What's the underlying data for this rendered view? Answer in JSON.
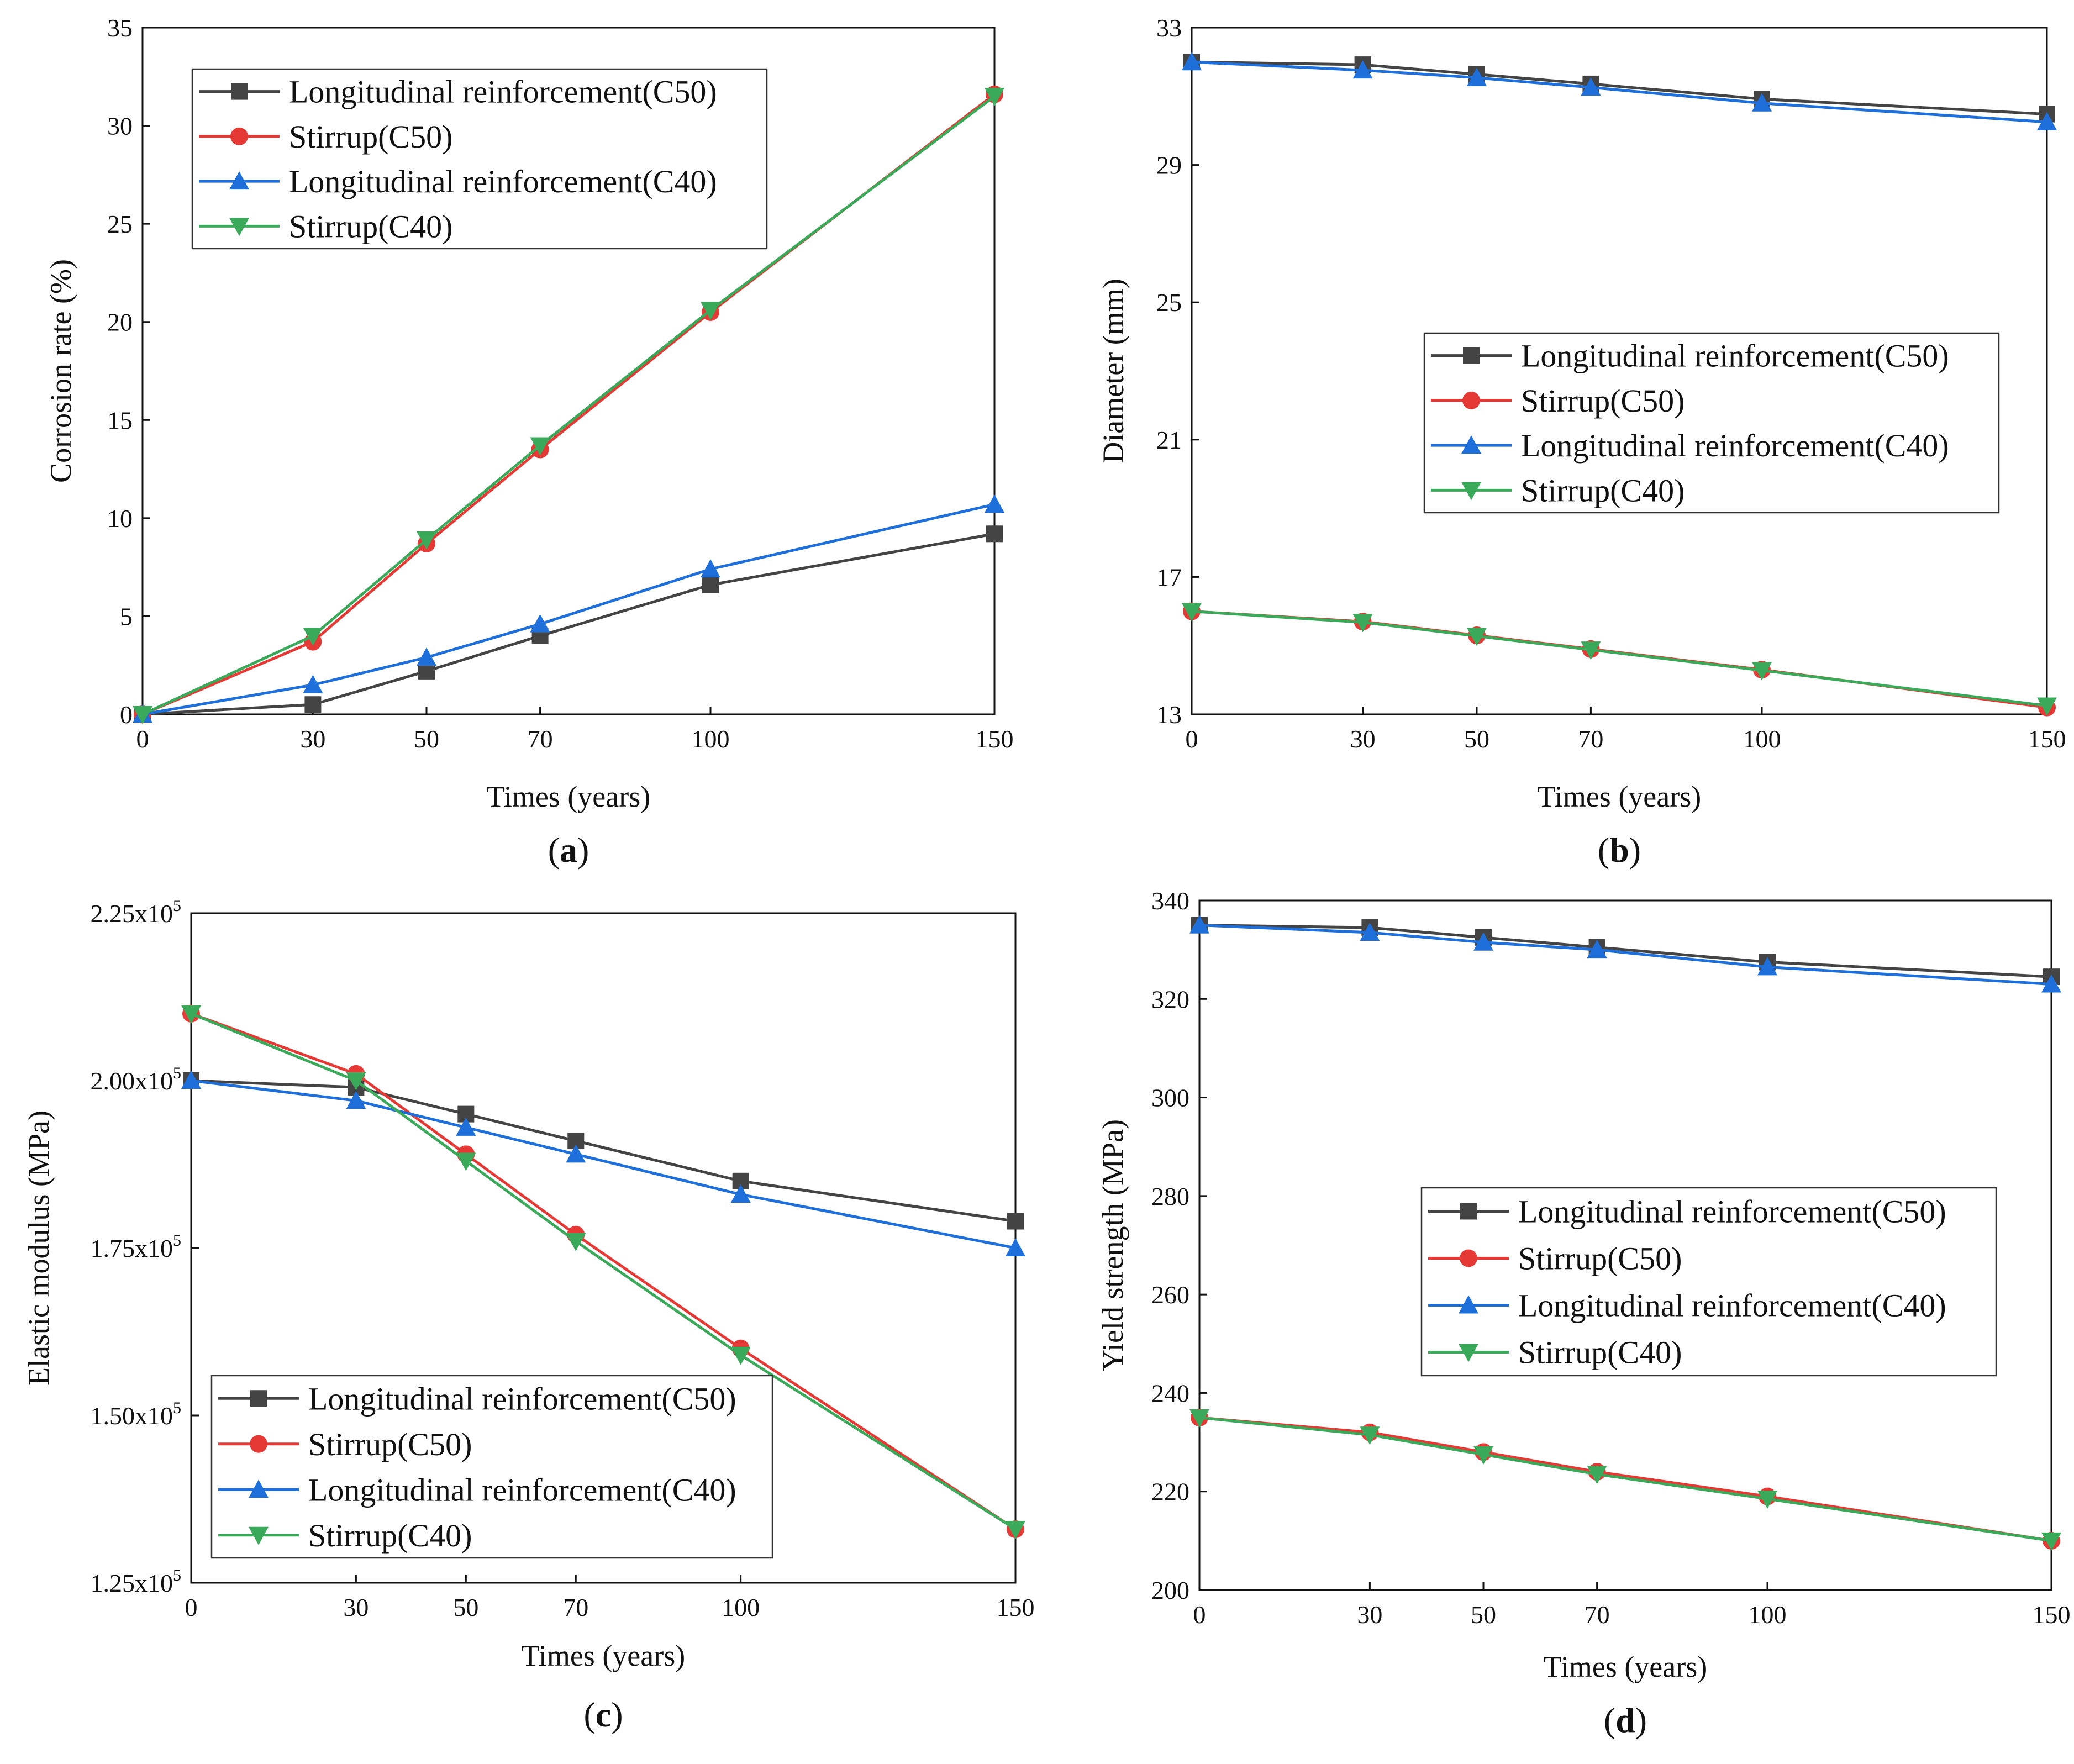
{
  "figure": {
    "series_styles": [
      {
        "color": "#444444",
        "marker": "square"
      },
      {
        "color": "#e53935",
        "marker": "circle"
      },
      {
        "color": "#1e6fd9",
        "marker": "triangle-up"
      },
      {
        "color": "#3aaa5a",
        "marker": "triangle-down"
      }
    ]
  },
  "chart_data": [
    {
      "type": "line",
      "panel_label": "(a)",
      "panel_letter": "a",
      "xlabel": "Times (years)",
      "ylabel": "Corrosion rate (%)",
      "x": [
        0,
        30,
        50,
        70,
        100,
        150
      ],
      "xlim": [
        0,
        150
      ],
      "ylim": [
        0,
        35
      ],
      "xticks": [
        "0",
        "30",
        "50",
        "70",
        "100",
        "150"
      ],
      "yticks": [
        {
          "v": 0,
          "label": "0"
        },
        {
          "v": 5,
          "label": "5"
        },
        {
          "v": 10,
          "label": "10"
        },
        {
          "v": 15,
          "label": "15"
        },
        {
          "v": 20,
          "label": "20"
        },
        {
          "v": 25,
          "label": "25"
        },
        {
          "v": 30,
          "label": "30"
        },
        {
          "v": 35,
          "label": "35"
        }
      ],
      "legend_position": "top-left",
      "series": [
        {
          "name": "Longitudinal reinforcement(C50)",
          "values": [
            0,
            0.5,
            2.2,
            4.0,
            6.6,
            9.2
          ]
        },
        {
          "name": "Stirrup(C50)",
          "values": [
            0,
            3.7,
            8.7,
            13.5,
            20.5,
            31.6
          ]
        },
        {
          "name": "Longitudinal reinforcement(C40)",
          "values": [
            0,
            1.5,
            2.9,
            4.6,
            7.4,
            10.7
          ]
        },
        {
          "name": "Stirrup(C40)",
          "values": [
            0,
            4.0,
            8.9,
            13.7,
            20.6,
            31.5
          ]
        }
      ]
    },
    {
      "type": "line",
      "panel_label": "(b)",
      "panel_letter": "b",
      "xlabel": "Times (years)",
      "ylabel": "Diameter (mm)",
      "x": [
        0,
        30,
        50,
        70,
        100,
        150
      ],
      "xlim": [
        0,
        150
      ],
      "ylim": [
        13,
        33
      ],
      "xticks": [
        "0",
        "30",
        "50",
        "70",
        "100",
        "150"
      ],
      "yticks": [
        {
          "v": 13,
          "label": "13"
        },
        {
          "v": 17,
          "label": "17"
        },
        {
          "v": 21,
          "label": "21"
        },
        {
          "v": 25,
          "label": "25"
        },
        {
          "v": 29,
          "label": "29"
        },
        {
          "v": 33,
          "label": "33"
        }
      ],
      "legend_position": "center-right",
      "series": [
        {
          "name": "Longitudinal reinforcement(C50)",
          "values": [
            32.0,
            31.92,
            31.64,
            31.36,
            30.92,
            30.48
          ]
        },
        {
          "name": "Stirrup(C50)",
          "values": [
            16.0,
            15.7,
            15.3,
            14.9,
            14.3,
            13.2
          ]
        },
        {
          "name": "Longitudinal reinforcement(C40)",
          "values": [
            32.0,
            31.76,
            31.54,
            31.26,
            30.8,
            30.25
          ]
        },
        {
          "name": "Stirrup(C40)",
          "values": [
            16.0,
            15.68,
            15.28,
            14.88,
            14.28,
            13.25
          ]
        }
      ]
    },
    {
      "type": "line",
      "panel_label": "(c)",
      "panel_letter": "c",
      "xlabel": "Times (years)",
      "ylabel": "Elastic modulus (MPa)",
      "x": [
        0,
        30,
        50,
        70,
        100,
        150
      ],
      "xlim": [
        0,
        150
      ],
      "ylim": [
        125000,
        225000
      ],
      "xticks": [
        "0",
        "30",
        "50",
        "70",
        "100",
        "150"
      ],
      "yticks": [
        {
          "v": 125000,
          "mant": "1.25x10",
          "exp": "5"
        },
        {
          "v": 150000,
          "mant": "1.50x10",
          "exp": "5"
        },
        {
          "v": 175000,
          "mant": "1.75x10",
          "exp": "5"
        },
        {
          "v": 200000,
          "mant": "2.00x10",
          "exp": "5"
        },
        {
          "v": 225000,
          "mant": "2.25x10",
          "exp": "5"
        }
      ],
      "legend_position": "bottom-left",
      "series": [
        {
          "name": "Longitudinal reinforcement(C50)",
          "values": [
            200000,
            199000,
            195000,
            191000,
            185000,
            179000
          ]
        },
        {
          "name": "Stirrup(C50)",
          "values": [
            210000,
            201000,
            189000,
            177000,
            160000,
            133000
          ]
        },
        {
          "name": "Longitudinal reinforcement(C40)",
          "values": [
            200000,
            197000,
            193000,
            189000,
            183000,
            175000
          ]
        },
        {
          "name": "Stirrup(C40)",
          "values": [
            210000,
            200000,
            188000,
            176000,
            159000,
            133000
          ]
        }
      ]
    },
    {
      "type": "line",
      "panel_label": "(d)",
      "panel_letter": "d",
      "xlabel": "Times (years)",
      "ylabel": "Yield strength (MPa)",
      "x": [
        0,
        30,
        50,
        70,
        100,
        150
      ],
      "xlim": [
        0,
        150
      ],
      "ylim": [
        200,
        340
      ],
      "xticks": [
        "0",
        "30",
        "50",
        "70",
        "100",
        "150"
      ],
      "yticks": [
        {
          "v": 200,
          "label": "200"
        },
        {
          "v": 220,
          "label": "220"
        },
        {
          "v": 240,
          "label": "240"
        },
        {
          "v": 260,
          "label": "260"
        },
        {
          "v": 280,
          "label": "280"
        },
        {
          "v": 300,
          "label": "300"
        },
        {
          "v": 320,
          "label": "320"
        },
        {
          "v": 340,
          "label": "340"
        }
      ],
      "legend_position": "center-right",
      "series": [
        {
          "name": "Longitudinal reinforcement(C50)",
          "values": [
            335,
            334.5,
            332.5,
            330.5,
            327.5,
            324.5
          ]
        },
        {
          "name": "Stirrup(C50)",
          "values": [
            235,
            232,
            228,
            224,
            219,
            210
          ]
        },
        {
          "name": "Longitudinal reinforcement(C40)",
          "values": [
            335,
            333.5,
            331.5,
            330,
            326.5,
            323
          ]
        },
        {
          "name": "Stirrup(C40)",
          "values": [
            235,
            231.5,
            227.5,
            223.5,
            218.5,
            210
          ]
        }
      ]
    }
  ]
}
